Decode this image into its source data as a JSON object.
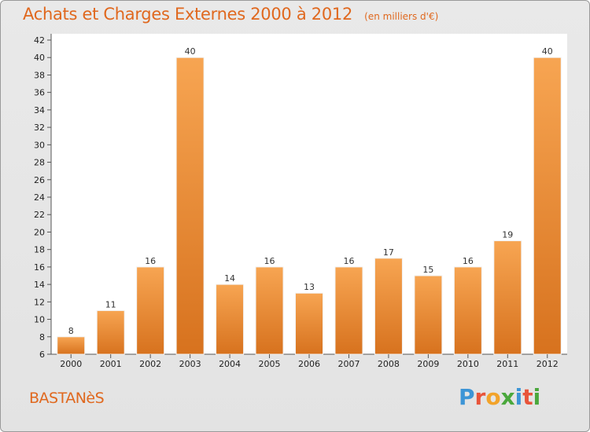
{
  "chart_data": {
    "type": "bar",
    "title": "Achats et Charges Externes 2000 à 2012",
    "unit": "(en milliers d'€)",
    "categories": [
      "2000",
      "2001",
      "2002",
      "2003",
      "2004",
      "2005",
      "2006",
      "2007",
      "2008",
      "2009",
      "2010",
      "2011",
      "2012"
    ],
    "values": [
      8,
      11,
      16,
      40,
      14,
      16,
      13,
      16,
      17,
      15,
      16,
      19,
      40
    ],
    "ylim": [
      6,
      42
    ],
    "ytick_step": 2,
    "grid": false,
    "bar_color": "#f39a44"
  },
  "footer": {
    "location": "BASTANèS",
    "brand": [
      "P",
      "r",
      "o",
      "x",
      "i",
      "t",
      "i"
    ],
    "brand_colors": [
      "#3d95d6",
      "#e8543a",
      "#f2a32a",
      "#4aa83c",
      "#3d95d6",
      "#e8543a",
      "#4aa83c"
    ]
  },
  "colors": {
    "accent": "#e0681e"
  }
}
